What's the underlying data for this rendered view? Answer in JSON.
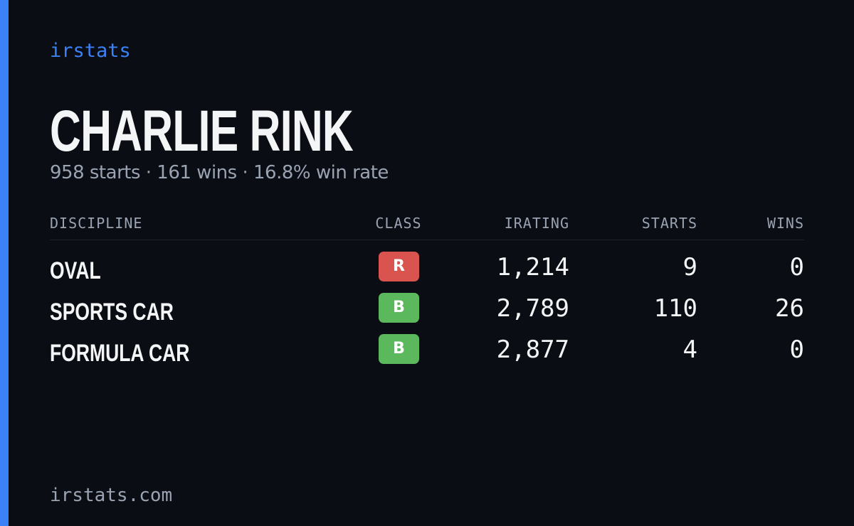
{
  "header": {
    "brand": "irstats",
    "name": "CHARLIE RINK",
    "summary": "958 starts · 161 wins · 16.8% win rate"
  },
  "table": {
    "columns": [
      "DISCIPLINE",
      "CLASS",
      "IRATING",
      "STARTS",
      "WINS"
    ],
    "rows": [
      {
        "discipline": "OVAL",
        "class": "R",
        "class_color": "#d9534f",
        "irating": "1,214",
        "starts": 9,
        "wins": 0
      },
      {
        "discipline": "SPORTS CAR",
        "class": "B",
        "class_color": "#5cb85c",
        "irating": "2,789",
        "starts": 110,
        "wins": 26
      },
      {
        "discipline": "FORMULA CAR",
        "class": "B",
        "class_color": "#5cb85c",
        "irating": "2,877",
        "starts": 4,
        "wins": 0
      }
    ]
  },
  "footer": {
    "site": "irstats.com"
  }
}
